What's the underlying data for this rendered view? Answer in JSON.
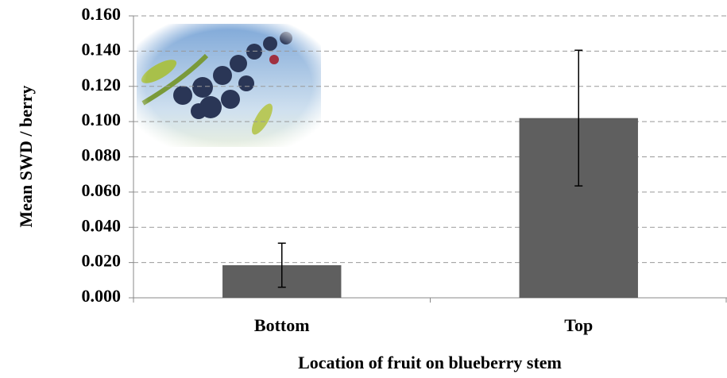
{
  "chart_data": {
    "type": "bar",
    "x_label": "Location of fruit on blueberry stem",
    "y_label": "Mean SWD / berry",
    "categories": [
      "Bottom",
      "Top"
    ],
    "values": [
      0.0185,
      0.102
    ],
    "errors": [
      0.0125,
      0.0385
    ],
    "color": "#5f5f5f",
    "ylim": [
      0,
      0.16
    ],
    "yticks": [
      {
        "value": 0,
        "label": "0.000"
      },
      {
        "value": 0.02,
        "label": "0.020"
      },
      {
        "value": 0.04,
        "label": "0.040"
      },
      {
        "value": 0.06,
        "label": "0.060"
      },
      {
        "value": 0.08,
        "label": "0.080"
      },
      {
        "value": 0.1,
        "label": "0.100"
      },
      {
        "value": 0.12,
        "label": "0.120"
      },
      {
        "value": 0.14,
        "label": "0.140"
      },
      {
        "value": 0.16,
        "label": "0.160"
      }
    ],
    "grid": true
  }
}
